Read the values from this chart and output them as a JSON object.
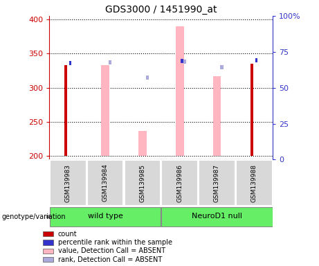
{
  "title": "GDS3000 / 1451990_at",
  "samples": [
    "GSM139983",
    "GSM139984",
    "GSM139985",
    "GSM139986",
    "GSM139987",
    "GSM139988"
  ],
  "ylim_left": [
    195,
    405
  ],
  "ylim_right": [
    0,
    100
  ],
  "yticks_left": [
    200,
    250,
    300,
    350,
    400
  ],
  "yticks_right": [
    0,
    25,
    50,
    75,
    100
  ],
  "count_values": [
    333,
    null,
    null,
    null,
    null,
    335
  ],
  "percentile_values": [
    336,
    null,
    null,
    339,
    null,
    340
  ],
  "value_absent": [
    null,
    333,
    237,
    390,
    317,
    null
  ],
  "rank_absent": [
    null,
    337,
    315,
    338,
    330,
    null
  ],
  "count_color": "#cc0000",
  "percentile_color": "#3333cc",
  "value_absent_color": "#ffb6c1",
  "rank_absent_color": "#aaaadd",
  "bar_bottom": 200,
  "left_axis_color": "#cc0000",
  "right_axis_color": "#3333cc",
  "group_wt_color": "#66ee66",
  "group_nd_color": "#66ee66",
  "legend_items": [
    {
      "color": "#cc0000",
      "label": "count"
    },
    {
      "color": "#3333cc",
      "label": "percentile rank within the sample"
    },
    {
      "color": "#ffb6c1",
      "label": "value, Detection Call = ABSENT"
    },
    {
      "color": "#aaaadd",
      "label": "rank, Detection Call = ABSENT"
    }
  ]
}
